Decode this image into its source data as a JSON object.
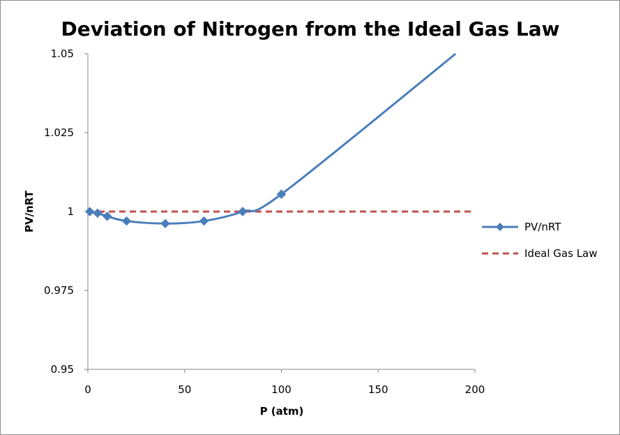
{
  "chart_data": {
    "type": "line",
    "title": "Deviation of Nitrogen from the Ideal Gas Law",
    "xlabel": "P (atm)",
    "ylabel": "PV/nRT",
    "xlim": [
      0,
      200
    ],
    "ylim": [
      0.95,
      1.05
    ],
    "x_ticks": [
      "0",
      "50",
      "100",
      "150",
      "200"
    ],
    "y_ticks": [
      "0.95",
      "0.975",
      "1",
      "1.025",
      "1.05"
    ],
    "grid": false,
    "legend_position": "right",
    "series": [
      {
        "name": "PV/nRT",
        "color": "#4a7ebb",
        "style": "solid-with-diamond-markers",
        "points": [
          {
            "x": 1,
            "y": 1.0
          },
          {
            "x": 5,
            "y": 0.9995
          },
          {
            "x": 10,
            "y": 0.9985
          },
          {
            "x": 20,
            "y": 0.997
          },
          {
            "x": 40,
            "y": 0.9962
          },
          {
            "x": 60,
            "y": 0.997
          },
          {
            "x": 80,
            "y": 1.0
          },
          {
            "x": 100,
            "y": 1.0055
          }
        ],
        "extension": [
          {
            "x": 190,
            "y": 1.05
          }
        ]
      },
      {
        "name": "Ideal Gas Law",
        "color": "#c0504d",
        "style": "dashed",
        "points": [
          {
            "x": 0,
            "y": 1.0
          },
          {
            "x": 200,
            "y": 1.0
          }
        ]
      }
    ]
  }
}
